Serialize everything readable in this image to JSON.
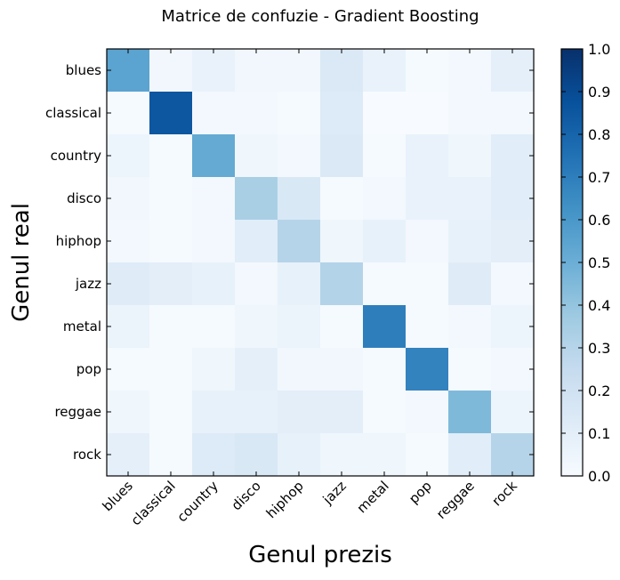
{
  "chart_data": {
    "type": "heatmap",
    "title": "Matrice de confuzie - Gradient Boosting",
    "xlabel": "Genul prezis",
    "ylabel": "Genul real",
    "x_categories": [
      "blues",
      "classical",
      "country",
      "disco",
      "hiphop",
      "jazz",
      "metal",
      "pop",
      "reggae",
      "rock"
    ],
    "y_categories": [
      "blues",
      "classical",
      "country",
      "disco",
      "hiphop",
      "jazz",
      "metal",
      "pop",
      "reggae",
      "rock"
    ],
    "values": [
      [
        0.55,
        0.03,
        0.07,
        0.03,
        0.03,
        0.14,
        0.07,
        0.01,
        0.02,
        0.09
      ],
      [
        0.01,
        0.85,
        0.02,
        0.02,
        0.01,
        0.13,
        0.0,
        0.0,
        0.02,
        0.02
      ],
      [
        0.05,
        0.01,
        0.52,
        0.04,
        0.02,
        0.14,
        0.01,
        0.07,
        0.04,
        0.11
      ],
      [
        0.03,
        0.01,
        0.02,
        0.34,
        0.15,
        0.01,
        0.02,
        0.07,
        0.07,
        0.11
      ],
      [
        0.02,
        0.01,
        0.02,
        0.11,
        0.3,
        0.04,
        0.08,
        0.02,
        0.08,
        0.1
      ],
      [
        0.12,
        0.1,
        0.08,
        0.02,
        0.08,
        0.31,
        0.01,
        0.01,
        0.12,
        0.02
      ],
      [
        0.06,
        0.01,
        0.01,
        0.04,
        0.06,
        0.01,
        0.7,
        0.01,
        0.02,
        0.05
      ],
      [
        0.01,
        0.01,
        0.04,
        0.09,
        0.03,
        0.03,
        0.01,
        0.68,
        0.01,
        0.02
      ],
      [
        0.04,
        0.01,
        0.08,
        0.08,
        0.1,
        0.1,
        0.01,
        0.02,
        0.45,
        0.05
      ],
      [
        0.09,
        0.01,
        0.13,
        0.15,
        0.08,
        0.04,
        0.04,
        0.01,
        0.11,
        0.3
      ]
    ],
    "colormap": "Blues",
    "vmin": 0.0,
    "vmax": 1.0,
    "colorbar": {
      "ticks": [
        0.0,
        0.1,
        0.2,
        0.3,
        0.4,
        0.5,
        0.6,
        0.7,
        0.8,
        0.9,
        1.0
      ],
      "tick_labels": [
        "0.0",
        "0.1",
        "0.2",
        "0.3",
        "0.4",
        "0.5",
        "0.6",
        "0.7",
        "0.8",
        "0.9",
        "1.0"
      ]
    },
    "colormap_stops": [
      "#f7fbff",
      "#deebf7",
      "#c6dbef",
      "#9ecae1",
      "#6baed6",
      "#4292c6",
      "#2171b5",
      "#08519c",
      "#08306b"
    ],
    "grid": false,
    "legend": false
  }
}
